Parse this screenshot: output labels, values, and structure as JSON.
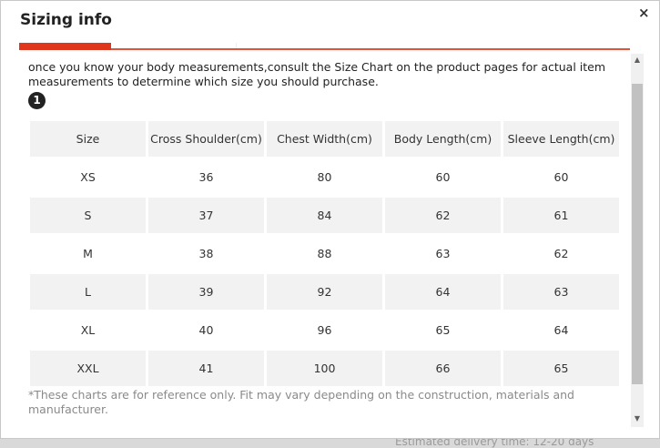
{
  "dialog": {
    "title": "Sizing info",
    "close_label": "×"
  },
  "content": {
    "intro": "once you know your body measurements,consult the Size Chart on the product pages for actual item measurements to determine which size you should purchase.",
    "badge": "1",
    "table": {
      "headers": [
        "Size",
        "Cross Shoulder(cm)",
        "Chest Width(cm)",
        "Body Length(cm)",
        "Sleeve Length(cm)"
      ],
      "rows": [
        [
          "XS",
          "36",
          "80",
          "60",
          "60"
        ],
        [
          "S",
          "37",
          "84",
          "62",
          "61"
        ],
        [
          "M",
          "38",
          "88",
          "63",
          "62"
        ],
        [
          "L",
          "39",
          "92",
          "64",
          "63"
        ],
        [
          "XL",
          "40",
          "96",
          "65",
          "64"
        ],
        [
          "XXL",
          "41",
          "100",
          "66",
          "65"
        ]
      ]
    },
    "note": "*These charts are for reference only. Fit may vary depending on the construction, materials and manufacturer."
  },
  "backdrop": {
    "partial_text": "Estimated delivery time: 12-20 days"
  },
  "scrollbar": {
    "up_icon": "▲",
    "down_icon": "▼"
  },
  "colors": {
    "accent": "#e0361c",
    "row_shade": "#f2f2f2"
  }
}
